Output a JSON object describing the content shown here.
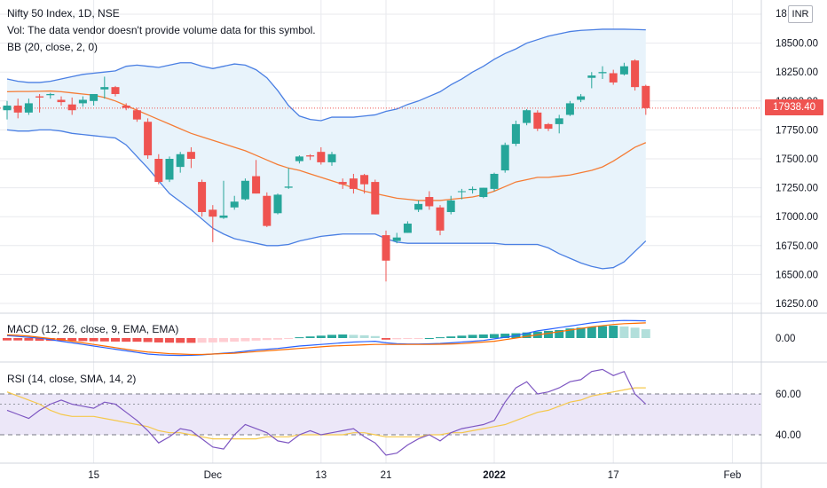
{
  "header": {
    "title": "Nifty 50 Index, 1D, NSE",
    "vol_note": "Vol: The data vendor doesn't provide volume data for this symbol.",
    "bb_label": "BB (20, close, 2, 0)",
    "macd_label": "MACD (12, 26, close, 9, EMA, EMA)",
    "rsi_label": "RSI (14, close, SMA, 14, 2)",
    "currency": "INR",
    "last_price": "17938.40"
  },
  "colors": {
    "up": "#26a69a",
    "down": "#ef5350",
    "bb_band": "#4a7fe3",
    "bb_basis": "#f57c35",
    "bb_fill": "#e8f3fb",
    "macd_line": "#2962ff",
    "signal_line": "#ff6d00",
    "rsi_line": "#7e57c2",
    "rsi_ma": "#f5c84c",
    "rsi_fill": "#ece7f8",
    "grid": "#e8eaee"
  },
  "chart_data": [
    {
      "type": "candlestick",
      "title": "Nifty 50 Index, 1D, NSE",
      "x_tick_labels": [
        "15",
        "Dec",
        "13",
        "21",
        "2022",
        "17",
        "Feb"
      ],
      "y_ticks": [
        "18 INR",
        "18500.00",
        "18250.00",
        "18000.00",
        "17750.00",
        "17500.00",
        "17250.00",
        "17000.00",
        "16750.00",
        "16500.00",
        "16250.00"
      ],
      "ylim": [
        16250,
        18750
      ],
      "last_price": 17938.4,
      "candles": [
        {
          "o": 17920,
          "h": 18000,
          "l": 17840,
          "c": 17960
        },
        {
          "o": 17960,
          "h": 18020,
          "l": 17850,
          "c": 17900
        },
        {
          "o": 17900,
          "h": 18020,
          "l": 17880,
          "c": 17980
        },
        {
          "o": 18040,
          "h": 18060,
          "l": 17900,
          "c": 18030
        },
        {
          "o": 18050,
          "h": 18070,
          "l": 18020,
          "c": 18060
        },
        {
          "o": 18010,
          "h": 18040,
          "l": 17960,
          "c": 17990
        },
        {
          "o": 17970,
          "h": 18030,
          "l": 17880,
          "c": 17920
        },
        {
          "o": 17980,
          "h": 18040,
          "l": 17950,
          "c": 18010
        },
        {
          "o": 18000,
          "h": 18050,
          "l": 17960,
          "c": 18060
        },
        {
          "o": 18100,
          "h": 18210,
          "l": 18020,
          "c": 18120
        },
        {
          "o": 18120,
          "h": 18130,
          "l": 18040,
          "c": 18060
        },
        {
          "o": 17960,
          "h": 17980,
          "l": 17920,
          "c": 17940
        },
        {
          "o": 17920,
          "h": 17940,
          "l": 17820,
          "c": 17840
        },
        {
          "o": 17820,
          "h": 17850,
          "l": 17500,
          "c": 17530
        },
        {
          "o": 17500,
          "h": 17540,
          "l": 17280,
          "c": 17300
        },
        {
          "o": 17320,
          "h": 17520,
          "l": 17300,
          "c": 17500
        },
        {
          "o": 17430,
          "h": 17560,
          "l": 17380,
          "c": 17540
        },
        {
          "o": 17560,
          "h": 17600,
          "l": 17420,
          "c": 17500
        },
        {
          "o": 17300,
          "h": 17320,
          "l": 17000,
          "c": 17040
        },
        {
          "o": 17060,
          "h": 17100,
          "l": 16780,
          "c": 17000
        },
        {
          "o": 16990,
          "h": 17310,
          "l": 16980,
          "c": 17010
        },
        {
          "o": 17080,
          "h": 17180,
          "l": 17060,
          "c": 17130
        },
        {
          "o": 17150,
          "h": 17330,
          "l": 17140,
          "c": 17310
        },
        {
          "o": 17350,
          "h": 17490,
          "l": 17200,
          "c": 17200
        },
        {
          "o": 17180,
          "h": 17210,
          "l": 16910,
          "c": 16920
        },
        {
          "o": 17030,
          "h": 17200,
          "l": 17020,
          "c": 17190
        },
        {
          "o": 17250,
          "h": 17420,
          "l": 17240,
          "c": 17260
        },
        {
          "o": 17480,
          "h": 17530,
          "l": 17460,
          "c": 17520
        },
        {
          "o": 17530,
          "h": 17540,
          "l": 17490,
          "c": 17520
        },
        {
          "o": 17560,
          "h": 17600,
          "l": 17450,
          "c": 17470
        },
        {
          "o": 17470,
          "h": 17560,
          "l": 17440,
          "c": 17540
        },
        {
          "o": 17300,
          "h": 17330,
          "l": 17240,
          "c": 17280
        },
        {
          "o": 17330,
          "h": 17370,
          "l": 17200,
          "c": 17240
        },
        {
          "o": 17360,
          "h": 17370,
          "l": 17200,
          "c": 17280
        },
        {
          "o": 17300,
          "h": 17320,
          "l": 17020,
          "c": 17020
        },
        {
          "o": 16840,
          "h": 16880,
          "l": 16440,
          "c": 16620
        },
        {
          "o": 16790,
          "h": 16860,
          "l": 16770,
          "c": 16820
        },
        {
          "o": 16860,
          "h": 16960,
          "l": 16860,
          "c": 16940
        },
        {
          "o": 17060,
          "h": 17140,
          "l": 17040,
          "c": 17110
        },
        {
          "o": 17170,
          "h": 17220,
          "l": 17060,
          "c": 17090
        },
        {
          "o": 17080,
          "h": 17100,
          "l": 16840,
          "c": 16880
        },
        {
          "o": 17040,
          "h": 17180,
          "l": 17020,
          "c": 17140
        },
        {
          "o": 17220,
          "h": 17240,
          "l": 17150,
          "c": 17220
        },
        {
          "o": 17230,
          "h": 17260,
          "l": 17200,
          "c": 17240
        },
        {
          "o": 17170,
          "h": 17250,
          "l": 17160,
          "c": 17250
        },
        {
          "o": 17240,
          "h": 17380,
          "l": 17220,
          "c": 17370
        },
        {
          "o": 17400,
          "h": 17640,
          "l": 17380,
          "c": 17620
        },
        {
          "o": 17630,
          "h": 17830,
          "l": 17610,
          "c": 17800
        },
        {
          "o": 17810,
          "h": 17930,
          "l": 17790,
          "c": 17920
        },
        {
          "o": 17900,
          "h": 17920,
          "l": 17740,
          "c": 17760
        },
        {
          "o": 17800,
          "h": 17810,
          "l": 17740,
          "c": 17760
        },
        {
          "o": 17800,
          "h": 17880,
          "l": 17720,
          "c": 17850
        },
        {
          "o": 17880,
          "h": 18000,
          "l": 17870,
          "c": 17980
        },
        {
          "o": 18010,
          "h": 18060,
          "l": 17990,
          "c": 18040
        },
        {
          "o": 18200,
          "h": 18250,
          "l": 18110,
          "c": 18220
        },
        {
          "o": 18240,
          "h": 18300,
          "l": 18190,
          "c": 18250
        },
        {
          "o": 18240,
          "h": 18270,
          "l": 18140,
          "c": 18160
        },
        {
          "o": 18230,
          "h": 18330,
          "l": 18220,
          "c": 18300
        },
        {
          "o": 18350,
          "h": 18360,
          "l": 18090,
          "c": 18120
        },
        {
          "o": 18130,
          "h": 18140,
          "l": 17880,
          "c": 17938.4
        }
      ],
      "bollinger": {
        "upper": [
          18190,
          18170,
          18160,
          18160,
          18170,
          18190,
          18210,
          18230,
          18240,
          18250,
          18260,
          18300,
          18310,
          18300,
          18290,
          18310,
          18330,
          18330,
          18300,
          18280,
          18300,
          18320,
          18310,
          18270,
          18200,
          18090,
          17960,
          17870,
          17840,
          17830,
          17860,
          17860,
          17860,
          17870,
          17880,
          17910,
          17930,
          17970,
          18000,
          18040,
          18080,
          18140,
          18190,
          18250,
          18300,
          18360,
          18410,
          18450,
          18500,
          18530,
          18560,
          18580,
          18600,
          18610,
          18615,
          18620,
          18620,
          18620,
          18618,
          18615
        ],
        "basis": [
          18080,
          18082,
          18082,
          18084,
          18086,
          18080,
          18070,
          18060,
          18050,
          18030,
          18000,
          17960,
          17920,
          17880,
          17840,
          17800,
          17760,
          17720,
          17690,
          17660,
          17630,
          17600,
          17570,
          17530,
          17490,
          17450,
          17420,
          17400,
          17370,
          17340,
          17310,
          17280,
          17250,
          17220,
          17200,
          17180,
          17160,
          17150,
          17140,
          17140,
          17140,
          17150,
          17160,
          17170,
          17190,
          17220,
          17260,
          17300,
          17320,
          17340,
          17340,
          17350,
          17360,
          17380,
          17400,
          17430,
          17480,
          17540,
          17600,
          17640
        ],
        "lower": [
          17750,
          17740,
          17740,
          17750,
          17750,
          17740,
          17720,
          17710,
          17700,
          17690,
          17680,
          17620,
          17520,
          17420,
          17310,
          17200,
          17130,
          17060,
          16980,
          16900,
          16850,
          16810,
          16790,
          16770,
          16750,
          16750,
          16760,
          16790,
          16810,
          16830,
          16840,
          16850,
          16850,
          16850,
          16850,
          16810,
          16780,
          16770,
          16770,
          16770,
          16770,
          16770,
          16770,
          16770,
          16770,
          16770,
          16760,
          16760,
          16760,
          16760,
          16730,
          16680,
          16640,
          16600,
          16570,
          16550,
          16560,
          16610,
          16700,
          16790
        ]
      }
    },
    {
      "type": "bar_line",
      "title": "MACD (12, 26, close, 9, EMA, EMA)",
      "y_tick_labels": [
        "0.00"
      ],
      "histogram": [
        -30,
        -30,
        -32,
        -34,
        -35,
        -36,
        -36,
        -38,
        -40,
        -42,
        -44,
        -46,
        -46,
        -50,
        -55,
        -58,
        -60,
        -60,
        -58,
        -55,
        -50,
        -45,
        -40,
        -32,
        -25,
        -20,
        -10,
        10,
        20,
        30,
        40,
        45,
        40,
        35,
        25,
        -20,
        -15,
        -10,
        -5,
        0,
        10,
        20,
        30,
        40,
        45,
        50,
        55,
        60,
        70,
        80,
        90,
        100,
        120,
        130,
        140,
        150,
        155,
        145,
        130,
        110
      ],
      "macd_line": [
        30,
        20,
        10,
        0,
        -20,
        -40,
        -60,
        -80,
        -100,
        -120,
        -140,
        -160,
        -180,
        -200,
        -210,
        -215,
        -218,
        -215,
        -210,
        -200,
        -190,
        -180,
        -165,
        -150,
        -140,
        -130,
        -115,
        -100,
        -90,
        -80,
        -70,
        -60,
        -50,
        -45,
        -40,
        -60,
        -70,
        -75,
        -75,
        -72,
        -68,
        -60,
        -50,
        -40,
        -30,
        -10,
        10,
        30,
        60,
        90,
        110,
        130,
        150,
        170,
        190,
        205,
        215,
        220,
        218,
        215
      ],
      "signal_line": [
        40,
        35,
        25,
        10,
        -5,
        -20,
        -40,
        -60,
        -80,
        -100,
        -120,
        -140,
        -160,
        -175,
        -185,
        -195,
        -200,
        -205,
        -205,
        -200,
        -195,
        -190,
        -180,
        -170,
        -160,
        -150,
        -140,
        -130,
        -120,
        -110,
        -100,
        -95,
        -90,
        -85,
        -80,
        -80,
        -80,
        -80,
        -80,
        -80,
        -78,
        -75,
        -70,
        -60,
        -50,
        -40,
        -20,
        0,
        20,
        40,
        60,
        80,
        100,
        120,
        140,
        155,
        170,
        180,
        185,
        190
      ]
    },
    {
      "type": "line",
      "title": "RSI (14, close, SMA, 14, 2)",
      "y_tick_labels": [
        "60.00",
        "40.00"
      ],
      "ylim": [
        25,
        75
      ],
      "bands": [
        40,
        60
      ],
      "rsi": [
        52,
        50,
        48,
        52,
        55,
        57,
        55,
        54,
        53,
        56,
        55,
        51,
        47,
        42,
        36,
        39,
        43,
        42,
        38,
        34,
        33,
        40,
        45,
        43,
        41,
        37,
        36,
        40,
        42,
        40,
        41,
        42,
        43,
        39,
        36,
        30,
        31,
        35,
        38,
        40,
        37,
        41,
        43,
        44,
        45,
        47,
        56,
        63,
        66,
        60,
        61,
        63,
        66,
        67,
        71,
        72,
        69,
        71,
        60,
        55
      ],
      "rsi_ma": [
        61,
        59,
        57,
        55,
        52,
        50,
        49,
        49,
        49,
        48,
        47,
        46,
        45,
        44,
        42,
        41,
        41,
        40,
        39,
        38,
        38,
        38,
        38,
        38,
        39,
        39,
        39,
        40,
        40,
        40,
        40,
        40,
        41,
        41,
        40,
        39,
        39,
        39,
        39,
        40,
        40,
        41,
        41,
        42,
        43,
        44,
        45,
        47,
        49,
        51,
        52,
        54,
        56,
        57,
        59,
        60,
        61,
        62,
        63,
        63
      ]
    }
  ]
}
